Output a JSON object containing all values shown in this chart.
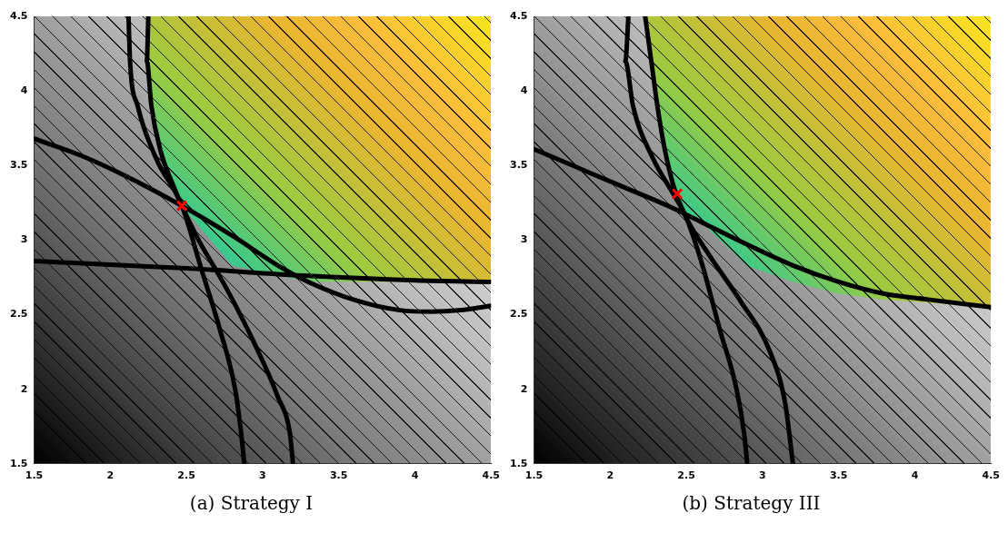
{
  "chart_data": [
    {
      "type": "line",
      "title": "(a) Strategy I",
      "xlim": [
        1.5,
        4.5
      ],
      "ylim": [
        1.5,
        4.5
      ],
      "xticks": [
        1.5,
        2,
        2.5,
        3,
        3.5,
        4,
        4.5
      ],
      "yticks": [
        1.5,
        2,
        2.5,
        3,
        3.5,
        4,
        4.5
      ],
      "grid": false,
      "legend": false,
      "series": [
        {
          "color": "#000000",
          "x": [
            2.12,
            2.13,
            2.18,
            2.3,
            2.47,
            2.6,
            2.72,
            2.82,
            2.86,
            2.88
          ],
          "values": [
            4.5,
            4.2,
            3.9,
            3.55,
            3.23,
            2.8,
            2.4,
            2.0,
            1.7,
            1.5
          ]
        },
        {
          "color": "#000000",
          "x": [
            2.25,
            2.24,
            2.27,
            2.33,
            2.42,
            2.47,
            2.58,
            2.75,
            2.95,
            3.1,
            3.18,
            3.2
          ],
          "values": [
            4.5,
            4.2,
            3.9,
            3.6,
            3.35,
            3.23,
            3.0,
            2.7,
            2.3,
            1.95,
            1.7,
            1.5
          ]
        },
        {
          "color": "#000000",
          "x": [
            1.5,
            1.8,
            2.1,
            2.47,
            2.8,
            3.1,
            3.3,
            3.6,
            3.9,
            4.1,
            4.3,
            4.5
          ],
          "values": [
            3.68,
            3.57,
            3.43,
            3.23,
            3.03,
            2.83,
            2.72,
            2.6,
            2.53,
            2.52,
            2.53,
            2.56
          ]
        },
        {
          "color": "#000000",
          "x": [
            1.5,
            2.5,
            3.3,
            4.0,
            4.5
          ],
          "values": [
            2.86,
            2.81,
            2.76,
            2.73,
            2.72
          ]
        },
        {
          "type": "scatter",
          "color": "#ff0000",
          "marker": "cross",
          "x": [
            2.47
          ],
          "values": [
            3.23
          ]
        }
      ]
    },
    {
      "type": "line",
      "title": "(b) Strategy III",
      "xlim": [
        1.5,
        4.5
      ],
      "ylim": [
        1.5,
        4.5
      ],
      "xticks": [
        1.5,
        2,
        2.5,
        3,
        3.5,
        4,
        4.5
      ],
      "yticks": [
        1.5,
        2,
        2.5,
        3,
        3.5,
        4,
        4.5
      ],
      "grid": false,
      "legend": false,
      "series": [
        {
          "color": "#000000",
          "x": [
            2.12,
            2.1,
            2.15,
            2.28,
            2.42,
            2.5,
            2.6,
            2.72,
            2.83,
            2.88,
            2.9
          ],
          "values": [
            4.5,
            4.2,
            3.9,
            3.55,
            3.3,
            3.15,
            2.85,
            2.4,
            2.0,
            1.7,
            1.5
          ]
        },
        {
          "color": "#000000",
          "x": [
            2.23,
            2.27,
            2.31,
            2.36,
            2.42,
            2.5,
            2.65,
            2.85,
            3.05,
            3.15,
            3.2
          ],
          "values": [
            4.5,
            4.2,
            3.9,
            3.6,
            3.35,
            3.15,
            2.9,
            2.6,
            2.25,
            1.9,
            1.5
          ]
        },
        {
          "color": "#000000",
          "x": [
            1.5,
            1.8,
            2.1,
            2.4,
            2.6,
            2.9,
            3.2,
            3.5,
            3.8,
            4.1,
            4.5
          ],
          "values": [
            3.61,
            3.48,
            3.35,
            3.22,
            3.12,
            2.97,
            2.83,
            2.72,
            2.64,
            2.6,
            2.55
          ]
        },
        {
          "type": "scatter",
          "color": "#ff0000",
          "marker": "cross",
          "x": [
            2.44
          ],
          "values": [
            3.31
          ]
        }
      ]
    }
  ]
}
